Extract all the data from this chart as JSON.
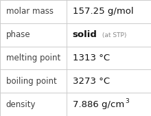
{
  "rows": [
    {
      "label": "molar mass",
      "value": "157.25 g/mol",
      "value_style": "normal"
    },
    {
      "label": "phase",
      "value": "solid",
      "value_style": "bold",
      "suffix": " (at STP)"
    },
    {
      "label": "melting point",
      "value": "1313 °C",
      "value_style": "normal"
    },
    {
      "label": "boiling point",
      "value": "3273 °C",
      "value_style": "normal"
    },
    {
      "label": "density",
      "value": "7.886 g/cm",
      "value_style": "normal",
      "superscript": "3"
    }
  ],
  "col_split": 0.44,
  "bg_color": "#ffffff",
  "label_color": "#404040",
  "value_color": "#111111",
  "suffix_color": "#888888",
  "grid_color": "#cccccc",
  "label_fontsize": 8.5,
  "value_fontsize": 9.5,
  "suffix_fontsize": 6.5,
  "super_fontsize": 6.5
}
